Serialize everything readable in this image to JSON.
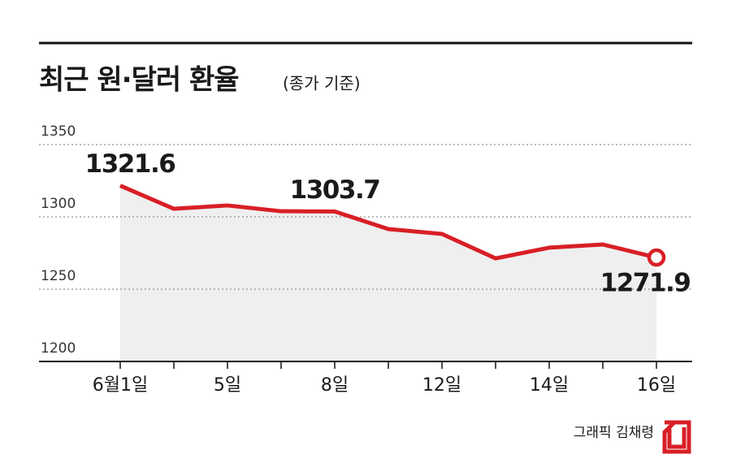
{
  "chart_data": {
    "type": "line",
    "title": "최근 원·달러 환율",
    "subtitle": "(종가 기준)",
    "credit": "그래픽 김채령",
    "categories": [
      "6월1일",
      null,
      "5일",
      null,
      "8일",
      null,
      "12일",
      null,
      "14일",
      null,
      "16일"
    ],
    "values": [
      1321.6,
      1305.6,
      1307.9,
      1303.9,
      1303.7,
      1291.6,
      1288.2,
      1271.3,
      1278.7,
      1280.9,
      1271.9
    ],
    "value_labels": [
      "1321.6",
      null,
      null,
      null,
      "1303.7",
      null,
      null,
      null,
      null,
      null,
      "1271.9"
    ],
    "color": "#d81f26",
    "area_color": "#efefef",
    "ylim": [
      1200,
      1350
    ],
    "yticks": [
      1200,
      1250,
      1300,
      1350
    ],
    "grid": true
  }
}
